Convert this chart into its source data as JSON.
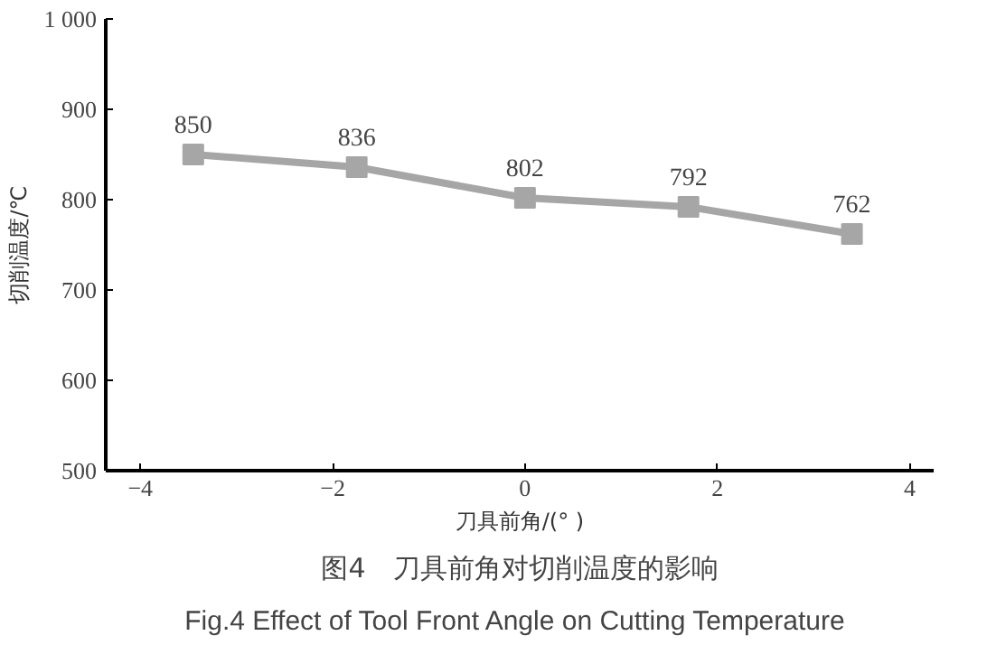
{
  "chart_data": {
    "type": "line",
    "title": "图4　刀具前角对切削温度的影响",
    "subtitle": "Fig.4  Effect of Tool Front Angle on Cutting Temperature",
    "xlabel": "刀具前角/(° )",
    "ylabel": "切削温度/℃",
    "x": [
      -3.45,
      -1.75,
      0,
      1.7,
      3.4
    ],
    "series": [
      {
        "color": "#a6a6a6",
        "values": [
          850,
          836,
          802,
          792,
          762
        ]
      }
    ],
    "xlim": [
      -4.36,
      4.25
    ],
    "xticks": [
      -4,
      -2,
      0,
      2,
      4
    ],
    "ylim": [
      500,
      1000
    ],
    "yticks": [
      500,
      600,
      700,
      800,
      900,
      {
        "value": 1000,
        "label": "1 000"
      }
    ],
    "marker": "square",
    "data_labels": true,
    "grid": false
  }
}
